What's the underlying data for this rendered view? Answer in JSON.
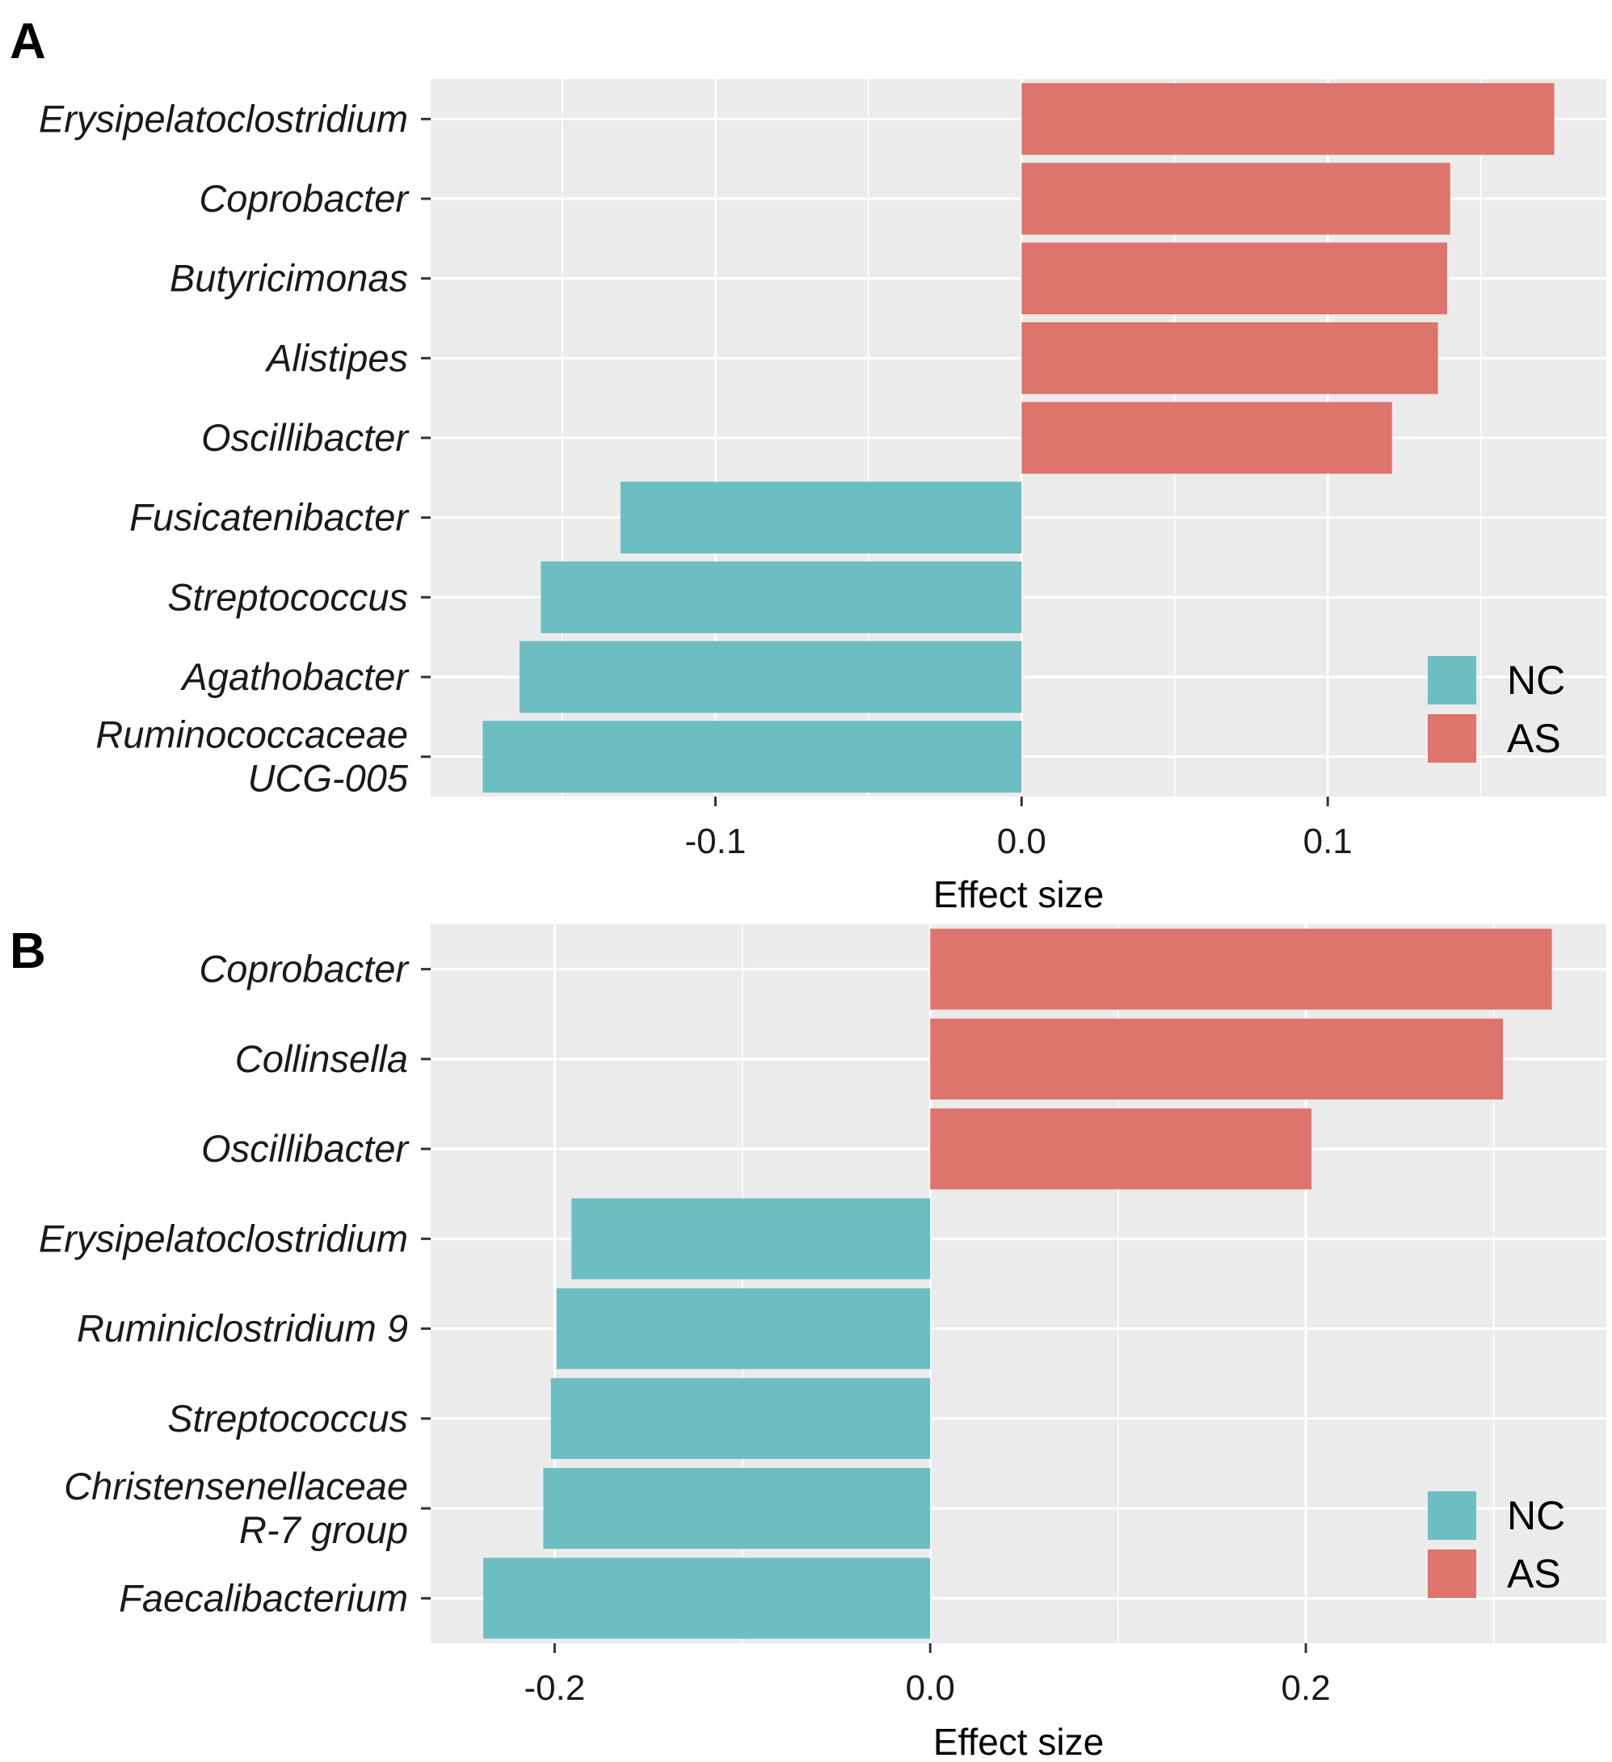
{
  "chart_data": [
    {
      "panel": "A",
      "type": "bar",
      "orientation": "horizontal",
      "categories": [
        "Erysipelatoclostridium",
        "Coprobacter",
        "Butyricimonas",
        "Alistipes",
        "Oscillibacter",
        "Fusicatenibacter",
        "Streptococcus",
        "Agathobacter",
        "Ruminococcaceae UCG-005"
      ],
      "category_lines": [
        [
          "Erysipelatoclostridium"
        ],
        [
          "Coprobacter"
        ],
        [
          "Butyricimonas"
        ],
        [
          "Alistipes"
        ],
        [
          "Oscillibacter"
        ],
        [
          "Fusicatenibacter"
        ],
        [
          "Streptococcus"
        ],
        [
          "Agathobacter"
        ],
        [
          "Ruminococcaceae",
          "UCG-005"
        ]
      ],
      "values": [
        0.174,
        0.14,
        0.139,
        0.136,
        0.121,
        -0.131,
        -0.157,
        -0.164,
        -0.176
      ],
      "groups": [
        "AS",
        "AS",
        "AS",
        "AS",
        "AS",
        "NC",
        "NC",
        "NC",
        "NC"
      ],
      "xlim": [
        -0.193,
        0.191
      ],
      "xticks": [
        -0.1,
        0.0,
        0.1
      ],
      "xtick_labels": [
        "-0.1",
        "0.0",
        "0.1"
      ],
      "xlabel": "Effect size",
      "ylabel": "",
      "legend": [
        {
          "label": "NC",
          "color": "#6dbec2"
        },
        {
          "label": "AS",
          "color": "#dd756d"
        }
      ],
      "legend_position": "bottom-right"
    },
    {
      "panel": "B",
      "type": "bar",
      "orientation": "horizontal",
      "categories": [
        "Coprobacter",
        "Collinsella",
        "Oscillibacter",
        "Erysipelatoclostridium",
        "Ruminiclostridium 9",
        "Streptococcus",
        "Christensenellaceae R-7 group",
        "Faecalibacterium"
      ],
      "category_lines": [
        [
          "Coprobacter"
        ],
        [
          "Collinsella"
        ],
        [
          "Oscillibacter"
        ],
        [
          "Erysipelatoclostridium"
        ],
        [
          "Ruminiclostridium 9"
        ],
        [
          "Streptococcus"
        ],
        [
          "Christensenellaceae",
          "R-7 group"
        ],
        [
          "Faecalibacterium"
        ]
      ],
      "values": [
        0.331,
        0.305,
        0.203,
        -0.191,
        -0.199,
        -0.202,
        -0.206,
        -0.238
      ],
      "groups": [
        "AS",
        "AS",
        "AS",
        "NC",
        "NC",
        "NC",
        "NC",
        "NC"
      ],
      "xlim": [
        -0.266,
        0.36
      ],
      "xticks": [
        -0.2,
        0.0,
        0.2
      ],
      "xtick_labels": [
        "-0.2",
        "0.0",
        "0.2"
      ],
      "xlabel": "Effect size",
      "ylabel": "",
      "legend": [
        {
          "label": "NC",
          "color": "#6dbec2"
        },
        {
          "label": "AS",
          "color": "#dd756d"
        }
      ],
      "legend_position": "bottom-right"
    }
  ],
  "colors": {
    "panel_background": "#ebebeb",
    "grid": "#ffffff",
    "NC": "#6dbec2",
    "AS": "#dd756d"
  }
}
